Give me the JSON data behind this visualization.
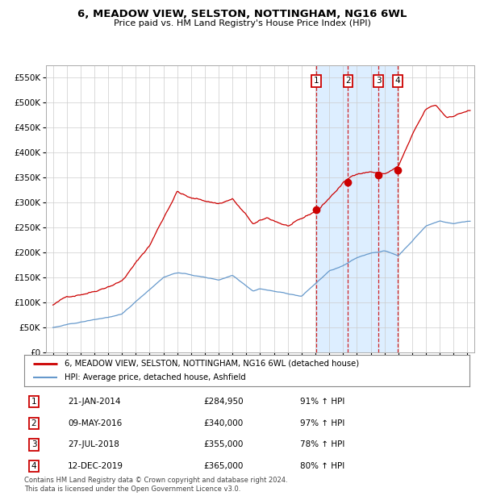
{
  "title": "6, MEADOW VIEW, SELSTON, NOTTINGHAM, NG16 6WL",
  "subtitle": "Price paid vs. HM Land Registry's House Price Index (HPI)",
  "legend_line1": "6, MEADOW VIEW, SELSTON, NOTTINGHAM, NG16 6WL (detached house)",
  "legend_line2": "HPI: Average price, detached house, Ashfield",
  "transactions": [
    {
      "num": 1,
      "date": "21-JAN-2014",
      "price": 284950,
      "pct": "91%",
      "dir": "↑"
    },
    {
      "num": 2,
      "date": "09-MAY-2016",
      "price": 340000,
      "pct": "97%",
      "dir": "↑"
    },
    {
      "num": 3,
      "date": "27-JUL-2018",
      "price": 355000,
      "pct": "78%",
      "dir": "↑"
    },
    {
      "num": 4,
      "date": "12-DEC-2019",
      "price": 365000,
      "pct": "80%",
      "dir": "↑"
    }
  ],
  "transaction_years": [
    2014.05,
    2016.36,
    2018.57,
    2019.95
  ],
  "transaction_prices": [
    284950,
    340000,
    355000,
    365000
  ],
  "footnote1": "Contains HM Land Registry data © Crown copyright and database right 2024.",
  "footnote2": "This data is licensed under the Open Government Licence v3.0.",
  "ylim": [
    0,
    575000
  ],
  "xlim_start": 1994.5,
  "xlim_end": 2025.5,
  "red_color": "#cc0000",
  "blue_color": "#6699cc",
  "shade_color": "#ddeeff",
  "grid_color": "#cccccc",
  "bg_color": "#ffffff"
}
